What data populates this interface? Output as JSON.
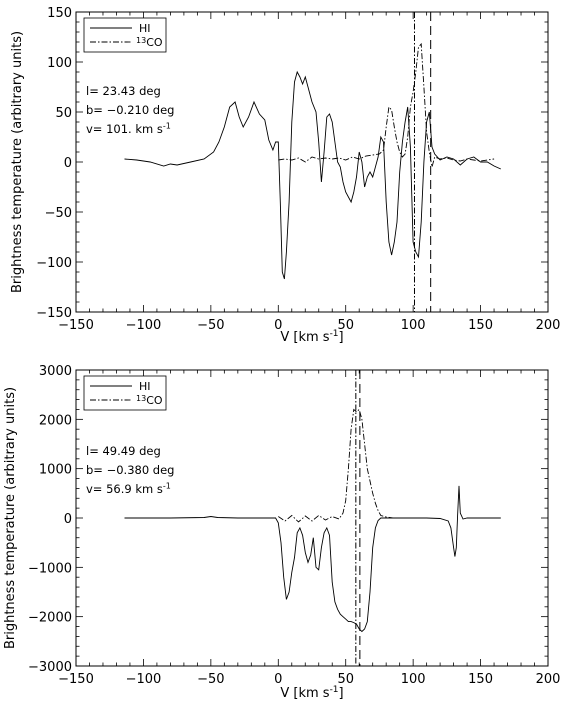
{
  "chart_data": [
    {
      "type": "line",
      "title": "",
      "xlabel_main": "V [km s",
      "xlabel_sup": "-1",
      "xlabel_end": "]",
      "ylabel": "Brightness temperature (arbitrary units)",
      "xlim": [
        -150,
        200
      ],
      "ylim": [
        -150,
        150
      ],
      "xticks": [
        -150,
        -100,
        -50,
        0,
        50,
        100,
        150,
        200
      ],
      "yticks": [
        -150,
        -100,
        -50,
        0,
        50,
        100,
        150
      ],
      "legend_position": "top-left",
      "legend": [
        {
          "label_main": "HI",
          "label_sup": "",
          "dash": "solid"
        },
        {
          "label_main": "CO",
          "label_sup": "13",
          "dash": "dashdot"
        }
      ],
      "annotations": [
        "l= 23.43 deg",
        "b= −0.210 deg"
      ],
      "vel_annotation": {
        "main": "v= 101. km s",
        "sup": "-1"
      },
      "vlines": [
        {
          "x": 101,
          "dash": "dashdot"
        },
        {
          "x": 113,
          "dash": "dashed"
        }
      ],
      "series": [
        {
          "name": "HI",
          "dash": "solid",
          "x": [
            -114,
            -105,
            -95,
            -85,
            -80,
            -75,
            -65,
            -55,
            -48,
            -44,
            -40,
            -36,
            -32,
            -29,
            -26,
            -22,
            -18,
            -14,
            -10,
            -7,
            -4,
            -2,
            0,
            1.5,
            3,
            4.5,
            6,
            8,
            10,
            12,
            14,
            16,
            18,
            20,
            22,
            25,
            28,
            30,
            32,
            34,
            36,
            38,
            40,
            42,
            44,
            46,
            48,
            50,
            52,
            54,
            56,
            58,
            60,
            62,
            64,
            66,
            68,
            70,
            72,
            74,
            76,
            78,
            80,
            82,
            84,
            86,
            88,
            90,
            92,
            94,
            96,
            98,
            100,
            102,
            104,
            106,
            108,
            110,
            112,
            114,
            116,
            118,
            120,
            125,
            130,
            135,
            140,
            145,
            150,
            155,
            160,
            165
          ],
          "y": [
            3,
            2,
            0,
            -4,
            -2,
            -3,
            0,
            3,
            10,
            20,
            35,
            55,
            60,
            45,
            35,
            45,
            60,
            48,
            42,
            22,
            12,
            20,
            20,
            -40,
            -110,
            -117,
            -90,
            -40,
            40,
            80,
            90,
            85,
            78,
            85,
            75,
            60,
            50,
            20,
            -20,
            10,
            45,
            48,
            40,
            20,
            0,
            -5,
            -20,
            -30,
            -35,
            -40,
            -30,
            -15,
            10,
            0,
            -25,
            -15,
            -10,
            -15,
            -5,
            5,
            25,
            20,
            -40,
            -80,
            -93,
            -80,
            -60,
            -10,
            20,
            40,
            55,
            15,
            -80,
            -90,
            -95,
            -60,
            0,
            40,
            50,
            15,
            8,
            5,
            2,
            5,
            3,
            -3,
            3,
            5,
            0,
            0,
            -4,
            -7
          ]
        },
        {
          "name": "CO",
          "dash": "dashdot",
          "x": [
            0,
            5,
            10,
            15,
            20,
            25,
            30,
            35,
            40,
            45,
            50,
            55,
            60,
            65,
            70,
            75,
            78,
            80,
            82,
            84,
            86,
            88,
            90,
            92,
            94,
            96,
            98,
            100,
            102,
            104,
            106,
            108,
            110,
            112,
            114,
            116,
            120,
            125,
            130,
            135,
            140,
            145,
            150,
            155,
            160
          ],
          "y": [
            2,
            3,
            2,
            4,
            0,
            5,
            3,
            4,
            3,
            4,
            2,
            5,
            3,
            6,
            7,
            8,
            12,
            35,
            55,
            52,
            35,
            20,
            10,
            5,
            8,
            25,
            55,
            70,
            90,
            115,
            118,
            75,
            30,
            10,
            -5,
            5,
            3,
            4,
            2,
            1,
            3,
            2,
            1,
            2,
            3
          ]
        }
      ]
    },
    {
      "type": "line",
      "title": "",
      "xlabel_main": "V [km s",
      "xlabel_sup": "-1",
      "xlabel_end": "]",
      "ylabel": "Brightness temperature (arbitrary units)",
      "xlim": [
        -150,
        200
      ],
      "ylim": [
        -3000,
        3000
      ],
      "xticks": [
        -150,
        -100,
        -50,
        0,
        50,
        100,
        150,
        200
      ],
      "yticks": [
        -3000,
        -2000,
        -1000,
        0,
        1000,
        2000,
        3000
      ],
      "legend_position": "top-left",
      "legend": [
        {
          "label_main": "HI",
          "label_sup": "",
          "dash": "solid"
        },
        {
          "label_main": "CO",
          "label_sup": "13",
          "dash": "dashdot"
        }
      ],
      "annotations": [
        "l= 49.49 deg",
        "b= −0.380 deg"
      ],
      "vel_annotation": {
        "main": "v= 56.9 km s",
        "sup": "-1"
      },
      "vlines": [
        {
          "x": 57.5,
          "dash": "dashdot"
        },
        {
          "x": 60.5,
          "dash": "dashed"
        }
      ],
      "series": [
        {
          "name": "HI",
          "dash": "solid",
          "x": [
            -114,
            -80,
            -55,
            -50,
            -45,
            -30,
            -10,
            -2,
            0,
            2,
            4,
            6,
            8,
            10,
            12,
            14,
            16,
            18,
            20,
            22,
            24,
            26,
            28,
            30,
            32,
            34,
            36,
            38,
            40,
            42,
            44,
            46,
            48,
            50,
            52,
            54,
            56,
            58,
            60,
            62,
            64,
            66,
            68,
            70,
            72,
            74,
            76,
            80,
            90,
            100,
            110,
            120,
            126,
            128,
            130,
            131,
            132,
            133,
            134,
            135,
            137,
            140,
            150,
            160,
            165
          ],
          "y": [
            0,
            0,
            10,
            30,
            10,
            0,
            0,
            0,
            -100,
            -500,
            -1200,
            -1650,
            -1500,
            -1100,
            -800,
            -300,
            -200,
            -350,
            -700,
            -900,
            -750,
            -400,
            -1000,
            -1050,
            -600,
            -300,
            -200,
            -350,
            -1300,
            -1700,
            -1850,
            -1950,
            -2000,
            -2050,
            -2100,
            -2100,
            -2120,
            -2150,
            -2250,
            -2300,
            -2250,
            -2100,
            -1500,
            -600,
            -200,
            -50,
            0,
            0,
            0,
            0,
            0,
            -10,
            -60,
            -200,
            -600,
            -780,
            -600,
            50,
            650,
            100,
            -20,
            0,
            0,
            0,
            0
          ]
        },
        {
          "name": "CO",
          "dash": "dashdot",
          "x": [
            0,
            5,
            10,
            15,
            20,
            25,
            30,
            35,
            40,
            45,
            48,
            50,
            52,
            54,
            56,
            58,
            60,
            62,
            64,
            66,
            68,
            70,
            72,
            74,
            76,
            80,
            85
          ],
          "y": [
            30,
            -60,
            50,
            -80,
            40,
            -60,
            50,
            -40,
            30,
            -20,
            100,
            350,
            1000,
            1800,
            2200,
            2150,
            2200,
            2000,
            1500,
            1000,
            750,
            500,
            300,
            150,
            50,
            20,
            0
          ]
        }
      ]
    }
  ]
}
